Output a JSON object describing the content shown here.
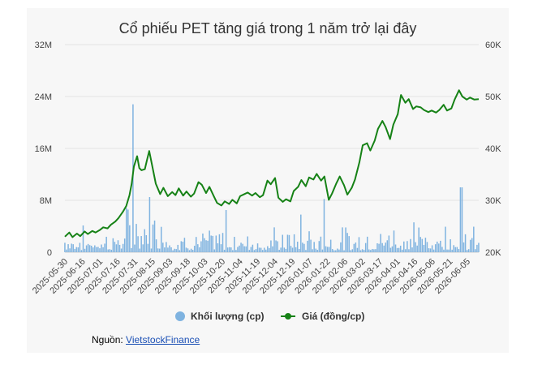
{
  "source": {
    "label": "Nguồn: ",
    "link_text": "VietstockFinance"
  },
  "colors": {
    "volume": "#7fb3e0",
    "price": "#168216",
    "grid": "#e3e3e3"
  },
  "chart_data": {
    "type": "bar+line",
    "title": "Cổ phiếu PET tăng giá trong 1 năm trở lại đây",
    "legend": {
      "placement": "bottom",
      "entries": [
        "Khối lượng (cp)",
        "Giá (đồng/cp)"
      ]
    },
    "grid": true,
    "x_ticks": [
      "2025-05-30",
      "2025-06-16",
      "2025-07-01",
      "2025-07-16",
      "2025-07-31",
      "2025-08-15",
      "2025-09-03",
      "2025-09-18",
      "2025-10-03",
      "2025-10-20",
      "2025-11-04",
      "2025-11-19",
      "2025-12-04",
      "2025-12-19",
      "2026-01-07",
      "2026-01-22",
      "2026-02-06",
      "2026-03-02",
      "2026-03-17",
      "2026-04-01",
      "2026-04-16",
      "2026-05-06",
      "2026-05-21",
      "2026-06-05"
    ],
    "y_left": {
      "ticks": [
        "0",
        "8M",
        "16M",
        "24M",
        "32M"
      ],
      "min": 0,
      "max": 32
    },
    "y_right": {
      "ticks": [
        "20K",
        "30K",
        "40K",
        "50K",
        "60K"
      ],
      "min": 20,
      "max": 60
    },
    "x_range": [
      "2025-05-30",
      "2026-06-12"
    ],
    "series": [
      {
        "name": "Giá (đồng/cp)",
        "type": "line",
        "axis": "right",
        "points": [
          [
            "2025-05-30",
            23.0
          ],
          [
            "2025-06-03",
            23.8
          ],
          [
            "2025-06-06",
            22.9
          ],
          [
            "2025-06-10",
            23.6
          ],
          [
            "2025-06-13",
            23.1
          ],
          [
            "2025-06-17",
            24.0
          ],
          [
            "2025-06-20",
            23.5
          ],
          [
            "2025-06-24",
            24.1
          ],
          [
            "2025-06-27",
            23.8
          ],
          [
            "2025-07-01",
            24.3
          ],
          [
            "2025-07-04",
            24.8
          ],
          [
            "2025-07-08",
            24.6
          ],
          [
            "2025-07-11",
            25.3
          ],
          [
            "2025-07-15",
            25.9
          ],
          [
            "2025-07-18",
            26.6
          ],
          [
            "2025-07-22",
            27.8
          ],
          [
            "2025-07-25",
            28.9
          ],
          [
            "2025-07-28",
            31.0
          ],
          [
            "2025-07-30",
            33.2
          ],
          [
            "2025-08-01",
            36.5
          ],
          [
            "2025-08-04",
            38.5
          ],
          [
            "2025-08-06",
            36.2
          ],
          [
            "2025-08-08",
            35.8
          ],
          [
            "2025-08-11",
            36.0
          ],
          [
            "2025-08-13",
            37.8
          ],
          [
            "2025-08-15",
            39.5
          ],
          [
            "2025-08-18",
            36.4
          ],
          [
            "2025-08-21",
            33.2
          ],
          [
            "2025-08-25",
            31.2
          ],
          [
            "2025-08-28",
            32.4
          ],
          [
            "2025-09-01",
            30.8
          ],
          [
            "2025-09-05",
            31.6
          ],
          [
            "2025-09-08",
            31.0
          ],
          [
            "2025-09-11",
            32.3
          ],
          [
            "2025-09-15",
            30.9
          ],
          [
            "2025-09-18",
            31.7
          ],
          [
            "2025-09-22",
            30.7
          ],
          [
            "2025-09-25",
            31.3
          ],
          [
            "2025-09-29",
            33.5
          ],
          [
            "2025-10-02",
            33.0
          ],
          [
            "2025-10-06",
            31.4
          ],
          [
            "2025-10-09",
            32.6
          ],
          [
            "2025-10-13",
            30.8
          ],
          [
            "2025-10-16",
            29.5
          ],
          [
            "2025-10-20",
            29.0
          ],
          [
            "2025-10-23",
            29.8
          ],
          [
            "2025-10-27",
            29.3
          ],
          [
            "2025-10-30",
            30.1
          ],
          [
            "2025-11-03",
            29.4
          ],
          [
            "2025-11-06",
            30.8
          ],
          [
            "2025-11-10",
            31.2
          ],
          [
            "2025-11-13",
            31.5
          ],
          [
            "2025-11-17",
            30.9
          ],
          [
            "2025-11-20",
            31.4
          ],
          [
            "2025-11-24",
            30.6
          ],
          [
            "2025-11-27",
            31.0
          ],
          [
            "2025-12-01",
            33.8
          ],
          [
            "2025-12-04",
            33.1
          ],
          [
            "2025-12-08",
            34.3
          ],
          [
            "2025-12-11",
            30.5
          ],
          [
            "2025-12-15",
            29.7
          ],
          [
            "2025-12-18",
            30.2
          ],
          [
            "2025-12-22",
            29.8
          ],
          [
            "2025-12-25",
            31.8
          ],
          [
            "2025-12-29",
            32.6
          ],
          [
            "2026-01-01",
            33.9
          ],
          [
            "2026-01-05",
            32.7
          ],
          [
            "2026-01-08",
            34.4
          ],
          [
            "2026-01-12",
            34.0
          ],
          [
            "2026-01-15",
            35.1
          ],
          [
            "2026-01-19",
            33.8
          ],
          [
            "2026-01-22",
            34.6
          ],
          [
            "2026-01-26",
            30.1
          ],
          [
            "2026-01-29",
            31.3
          ],
          [
            "2026-02-02",
            33.3
          ],
          [
            "2026-02-05",
            34.6
          ],
          [
            "2026-02-09",
            32.9
          ],
          [
            "2026-02-12",
            31.1
          ],
          [
            "2026-02-16",
            32.4
          ],
          [
            "2026-02-19",
            34.0
          ],
          [
            "2026-02-23",
            37.3
          ],
          [
            "2026-02-26",
            40.6
          ],
          [
            "2026-03-02",
            41.0
          ],
          [
            "2026-03-05",
            39.6
          ],
          [
            "2026-03-09",
            41.5
          ],
          [
            "2026-03-12",
            43.8
          ],
          [
            "2026-03-16",
            45.3
          ],
          [
            "2026-03-19",
            44.1
          ],
          [
            "2026-03-23",
            41.8
          ],
          [
            "2026-03-26",
            44.6
          ],
          [
            "2026-03-30",
            46.6
          ],
          [
            "2026-04-02",
            50.3
          ],
          [
            "2026-04-06",
            48.8
          ],
          [
            "2026-04-09",
            49.5
          ],
          [
            "2026-04-13",
            47.6
          ],
          [
            "2026-04-16",
            48.1
          ],
          [
            "2026-04-20",
            47.9
          ],
          [
            "2026-04-23",
            47.4
          ],
          [
            "2026-04-27",
            47.0
          ],
          [
            "2026-04-30",
            47.3
          ],
          [
            "2026-05-04",
            46.9
          ],
          [
            "2026-05-07",
            47.4
          ],
          [
            "2026-05-11",
            48.4
          ],
          [
            "2026-05-14",
            47.3
          ],
          [
            "2026-05-18",
            47.7
          ],
          [
            "2026-05-21",
            49.4
          ],
          [
            "2026-05-25",
            51.2
          ],
          [
            "2026-05-28",
            50.0
          ],
          [
            "2026-06-01",
            49.4
          ],
          [
            "2026-06-04",
            49.8
          ],
          [
            "2026-06-08",
            49.4
          ],
          [
            "2026-06-12",
            49.5
          ]
        ]
      },
      {
        "name": "Khối lượng (cp)",
        "type": "bar",
        "axis": "left",
        "spikes": [
          [
            "2025-07-31",
            22.8
          ],
          [
            "2025-08-15",
            8.5
          ],
          [
            "2025-10-24",
            6.5
          ],
          [
            "2025-12-31",
            5.8
          ],
          [
            "2026-01-22",
            8.2
          ],
          [
            "2026-05-27",
            10.0
          ]
        ]
      }
    ]
  }
}
